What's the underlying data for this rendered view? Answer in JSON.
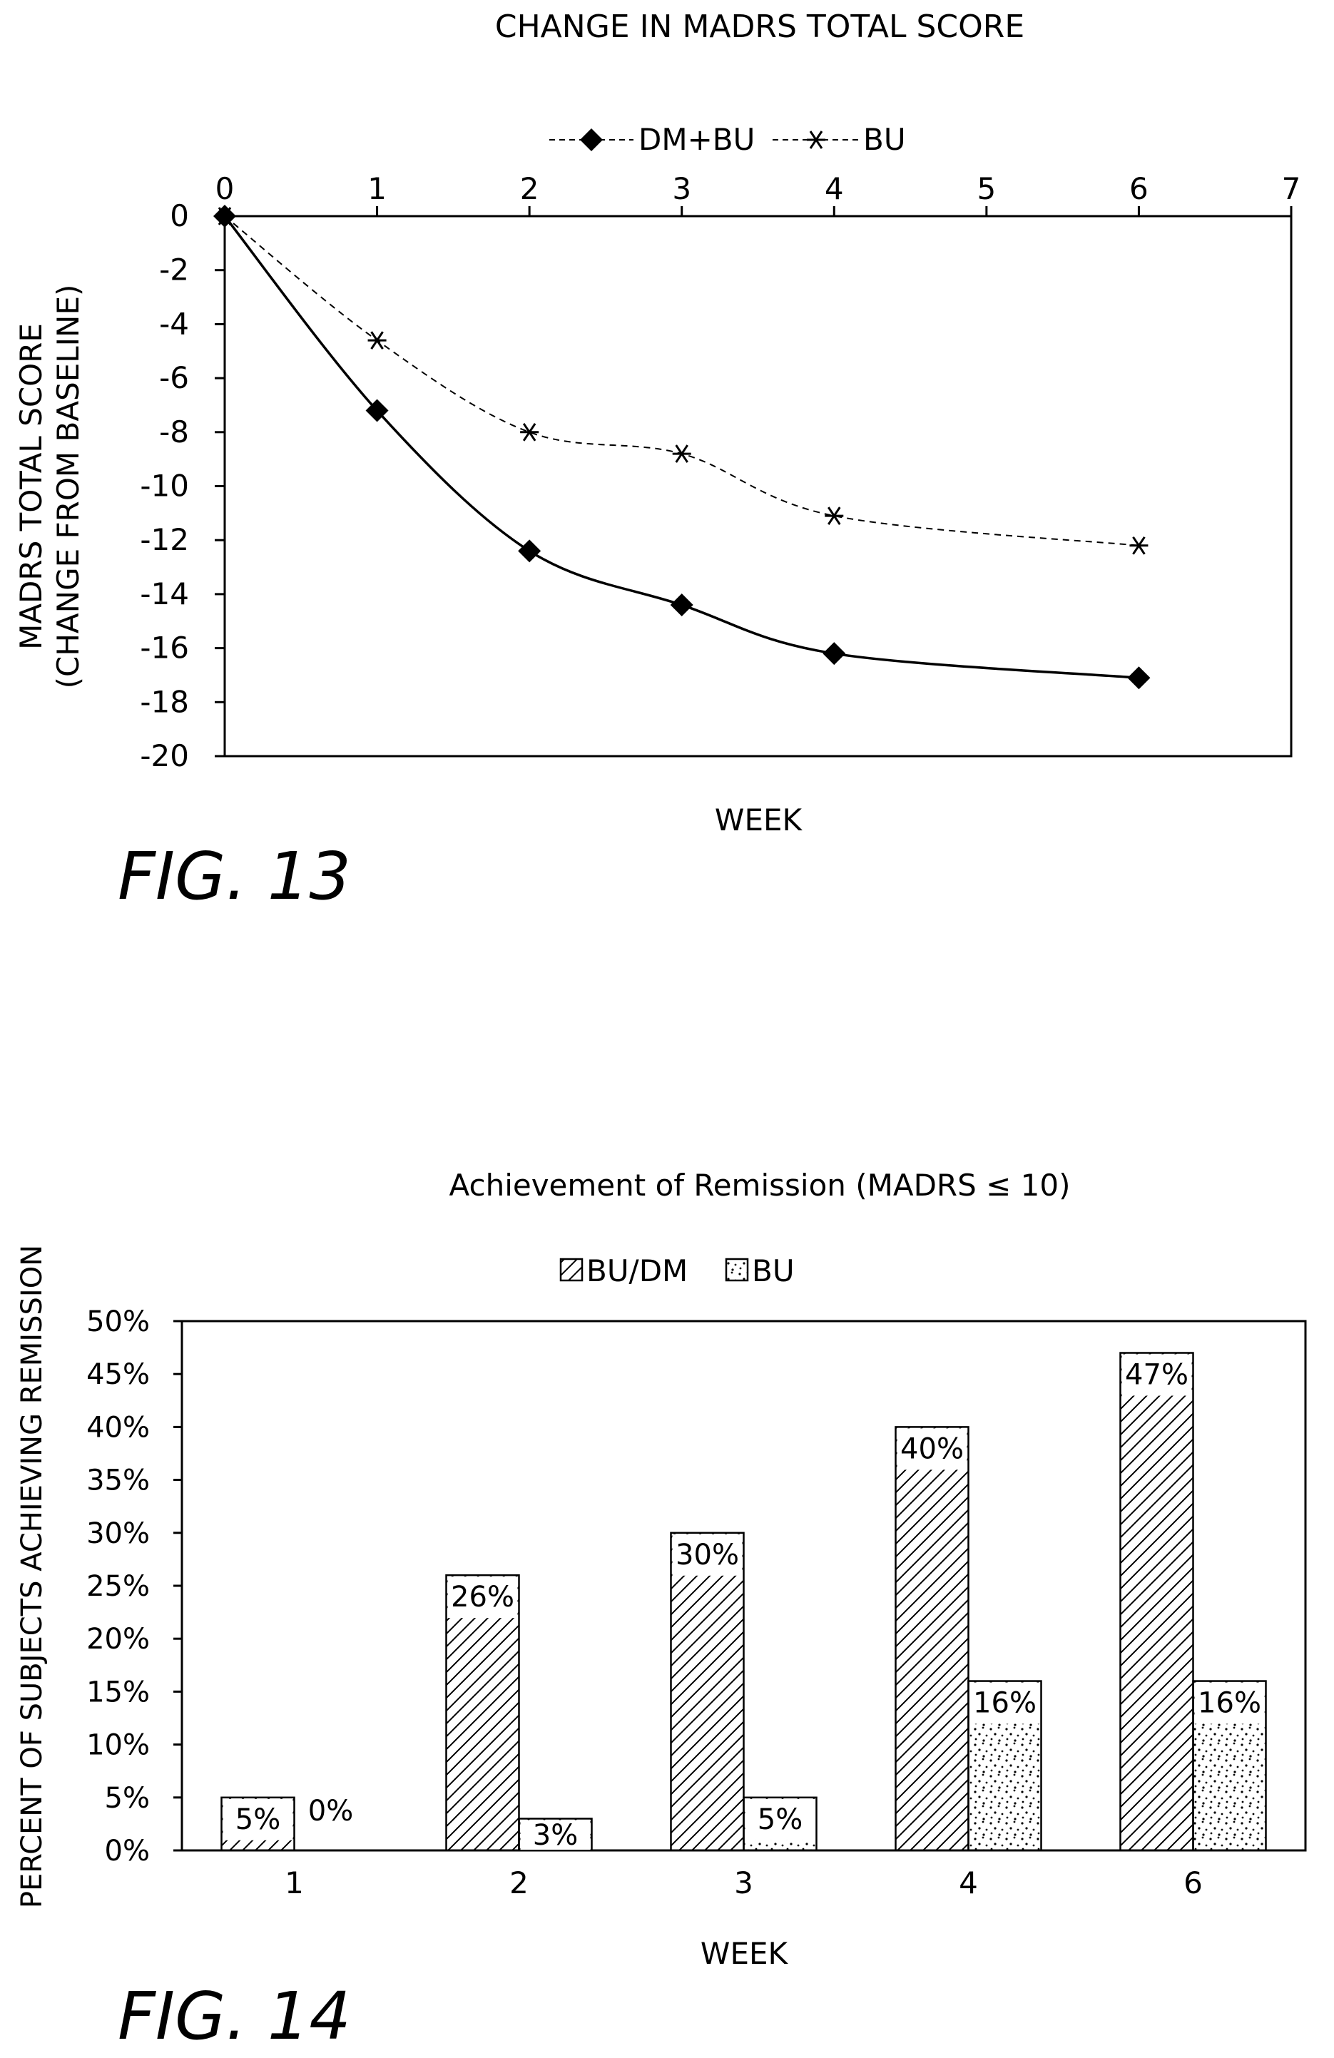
{
  "chart_data": [
    {
      "type": "line",
      "title": "CHANGE IN MADRS TOTAL SCORE",
      "xlabel": "WEEK",
      "ylabel": [
        "MADRS TOTAL SCORE",
        "(CHANGE FROM BASELINE)"
      ],
      "xlim": [
        0,
        7
      ],
      "ylim": [
        -20,
        0
      ],
      "x_ticks": [
        "0",
        "1",
        "2",
        "3",
        "4",
        "5",
        "6",
        "7"
      ],
      "y_ticks": [
        "0",
        "-2",
        "-4",
        "-6",
        "-8",
        "-10",
        "-12",
        "-14",
        "-16",
        "-18",
        "-20"
      ],
      "legend_position": "top",
      "series": [
        {
          "name": "DM+BU",
          "marker": "diamond",
          "line": "solid",
          "x": [
            0,
            1,
            2,
            3,
            4,
            6
          ],
          "y": [
            0,
            -7.2,
            -12.4,
            -14.4,
            -16.2,
            -17.1
          ]
        },
        {
          "name": "BU",
          "marker": "asterisk",
          "line": "dashed",
          "x": [
            0,
            1,
            2,
            3,
            4,
            6
          ],
          "y": [
            0,
            -4.6,
            -8.0,
            -8.8,
            -11.1,
            -12.2
          ]
        }
      ],
      "figure_label": "FIG. 13"
    },
    {
      "type": "bar",
      "title": "Achievement of Remission (MADRS ≤ 10)",
      "xlabel": "WEEK",
      "ylabel": "PERCENT OF SUBJECTS ACHIEVING REMISSION",
      "categories": [
        "1",
        "2",
        "3",
        "4",
        "6"
      ],
      "ylim": [
        0,
        50
      ],
      "y_ticks": [
        "0%",
        "5%",
        "10%",
        "15%",
        "20%",
        "25%",
        "30%",
        "35%",
        "40%",
        "45%",
        "50%"
      ],
      "legend_position": "top",
      "series": [
        {
          "name": "BU/DM",
          "pattern": "hatch",
          "values": [
            5,
            26,
            30,
            40,
            47
          ],
          "labels": [
            "5%",
            "26%",
            "30%",
            "40%",
            "47%"
          ]
        },
        {
          "name": "BU",
          "pattern": "dots",
          "values": [
            0,
            3,
            5,
            16,
            16
          ],
          "labels": [
            "0%",
            "3%",
            "5%",
            "16%",
            "16%"
          ]
        }
      ],
      "figure_label": "FIG. 14"
    }
  ]
}
